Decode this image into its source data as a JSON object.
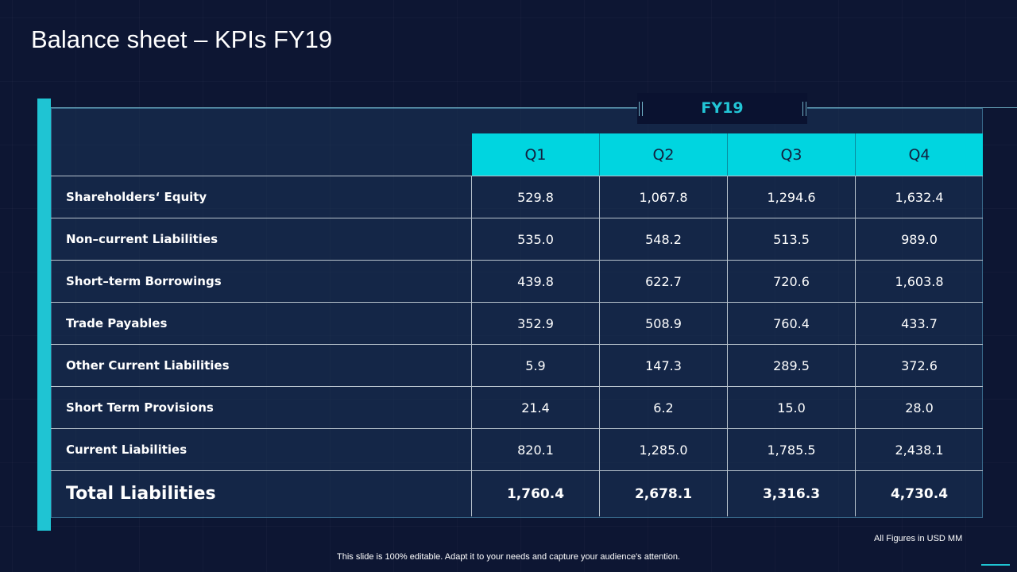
{
  "title": "Balance sheet – KPIs FY19",
  "period_label": "FY19",
  "columns": [
    "Q1",
    "Q2",
    "Q3",
    "Q4"
  ],
  "rows": [
    {
      "label": "Shareholders‘ Equity",
      "values": [
        "529.8",
        "1,067.8",
        "1,294.6",
        "1,632.4"
      ]
    },
    {
      "label": "Non–current Liabilities",
      "values": [
        "535.0",
        "548.2",
        "513.5",
        "989.0"
      ]
    },
    {
      "label": "Short–term Borrowings",
      "values": [
        "439.8",
        "622.7",
        "720.6",
        "1,603.8"
      ]
    },
    {
      "label": "Trade Payables",
      "values": [
        "352.9",
        "508.9",
        "760.4",
        "433.7"
      ]
    },
    {
      "label": "Other Current Liabilities",
      "values": [
        "5.9",
        "147.3",
        "289.5",
        "372.6"
      ]
    },
    {
      "label": "Short Term Provisions",
      "values": [
        "21.4",
        "6.2",
        "15.0",
        "28.0"
      ]
    },
    {
      "label": "Current Liabilities",
      "values": [
        "820.1",
        "1,285.0",
        "1,785.5",
        "2,438.1"
      ]
    }
  ],
  "total": {
    "label": "Total Liabilities",
    "values": [
      "1,760.4",
      "2,678.1",
      "3,316.3",
      "4,730.4"
    ]
  },
  "figures_note": "All Figures in USD MM",
  "footer_note": "This slide is 100% editable. Adapt it to your needs and capture your audience's attention.",
  "colors": {
    "background": "#0d1633",
    "accent": "#00d5e0",
    "header_text": "#12203f"
  }
}
